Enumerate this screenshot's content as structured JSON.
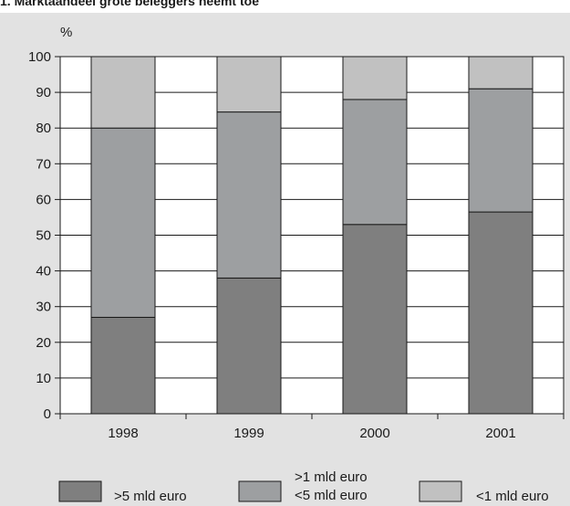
{
  "chart_data": {
    "type": "bar",
    "stacked": true,
    "title": "1. Marktaandeel grote beleggers neemt toe",
    "ylabel": "%",
    "xlabel": "",
    "ylim": [
      0,
      100
    ],
    "yticks": [
      0,
      10,
      20,
      30,
      40,
      50,
      60,
      70,
      80,
      90,
      100
    ],
    "grid": true,
    "legend_position": "bottom",
    "categories": [
      "1998",
      "1999",
      "2000",
      "2001"
    ],
    "series": [
      {
        "name": ">5 mld euro",
        "values": [
          27,
          38,
          53,
          56.5
        ],
        "color": "#7f7f7f"
      },
      {
        "name": ">1 mld euro <5 mld euro",
        "values": [
          53,
          46.5,
          35,
          34.5
        ],
        "color": "#9d9fa1"
      },
      {
        "name": "<1 mld euro",
        "values": [
          20,
          15.5,
          12,
          9
        ],
        "color": "#c1c1c1"
      }
    ]
  },
  "legend": {
    "items": [
      {
        "lines": [
          ">5 mld euro"
        ],
        "color": "#7f7f7f"
      },
      {
        "lines": [
          ">1 mld euro",
          "<5 mld euro"
        ],
        "color": "#9d9fa1"
      },
      {
        "lines": [
          "<1 mld euro"
        ],
        "color": "#c1c1c1"
      }
    ]
  }
}
